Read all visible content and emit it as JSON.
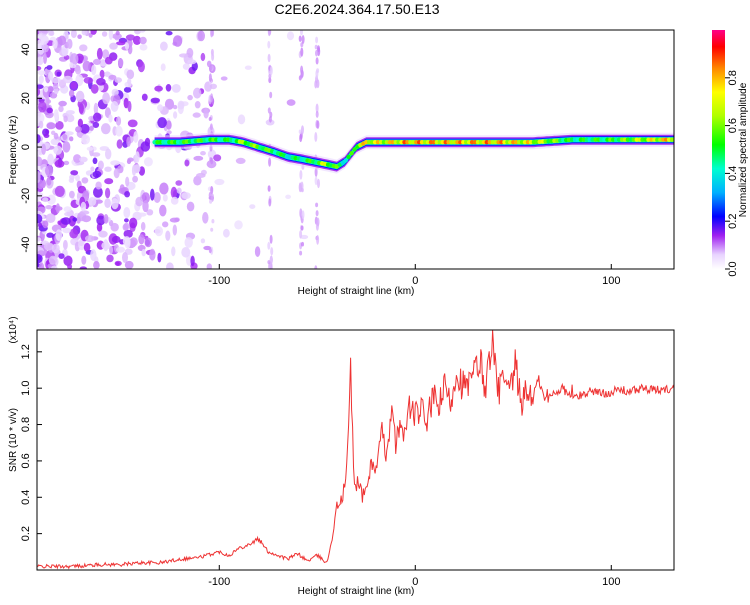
{
  "title": "C2E6.2024.364.17.50.E13",
  "chart_data": [
    {
      "type": "heatmap",
      "xlabel": "Height of straight line (km)",
      "ylabel": "Frequency (Hz)",
      "xlim": [
        -193,
        132
      ],
      "ylim": [
        -50,
        48
      ],
      "xticks": [
        -100,
        0,
        100
      ],
      "yticks": [
        -40,
        -20,
        0,
        20,
        40
      ],
      "colorbar": {
        "label": "Normalized spectral amplitude",
        "ticks": [
          "0.0",
          "0.2",
          "0.4",
          "0.6",
          "0.8"
        ],
        "range": [
          0,
          1
        ]
      },
      "ridge": {
        "x": [
          -133,
          -120,
          -105,
          -95,
          -88,
          -80,
          -72,
          -65,
          -58,
          -52,
          -46,
          -40,
          -36,
          -33,
          -30,
          -25,
          -18,
          -10,
          -5,
          0,
          20,
          40,
          60,
          80,
          100,
          132
        ],
        "frequency": [
          2,
          2,
          3,
          3,
          2,
          0,
          -2,
          -4,
          -5,
          -6,
          -7,
          -8,
          -6,
          -3,
          0,
          2,
          2,
          2,
          2,
          2,
          2,
          2,
          2,
          3,
          3,
          3
        ],
        "amplitude": [
          0.55,
          0.6,
          0.6,
          0.55,
          0.7,
          0.65,
          0.6,
          0.5,
          0.55,
          0.6,
          0.75,
          0.6,
          0.5,
          0.55,
          0.75,
          0.85,
          0.8,
          0.85,
          0.9,
          0.9,
          0.88,
          0.9,
          0.8,
          0.55,
          0.6,
          0.9
        ]
      }
    },
    {
      "type": "line",
      "xlabel": "Height of straight line (km)",
      "ylabel": "SNR (10 * v/v)",
      "scale_label": "(x10⁴)",
      "xlim": [
        -193,
        132
      ],
      "ylim": [
        0,
        1.32
      ],
      "xticks": [
        -100,
        0,
        100
      ],
      "yticks": [
        "0.2",
        "0.4",
        "0.6",
        "0.8",
        "1.0",
        "1.2"
      ],
      "color": "#ee3333",
      "series": [
        {
          "x": [
            -193,
            -175,
            -160,
            -150,
            -140,
            -130,
            -120,
            -110,
            -100,
            -95,
            -90,
            -85,
            -80,
            -75,
            -70,
            -65,
            -60,
            -55,
            -50,
            -45,
            -42,
            -40,
            -37,
            -35,
            -33,
            -31,
            -29,
            -27,
            -25,
            -22,
            -20,
            -17,
            -15,
            -12,
            -10,
            -7,
            -5,
            -3,
            0,
            3,
            6,
            9,
            12,
            15,
            18,
            21,
            24,
            27,
            30,
            33,
            36,
            39,
            42,
            45,
            48,
            51,
            54,
            57,
            60,
            63,
            66,
            70,
            75,
            80,
            85,
            90,
            95,
            100,
            105,
            110,
            115,
            120,
            125,
            132
          ],
          "values": [
            0.02,
            0.02,
            0.03,
            0.03,
            0.04,
            0.04,
            0.06,
            0.07,
            0.1,
            0.08,
            0.12,
            0.14,
            0.17,
            0.1,
            0.08,
            0.06,
            0.09,
            0.05,
            0.08,
            0.04,
            0.2,
            0.35,
            0.4,
            0.55,
            1.08,
            0.45,
            0.5,
            0.4,
            0.45,
            0.6,
            0.55,
            0.75,
            0.65,
            0.85,
            0.7,
            0.8,
            0.75,
            0.9,
            0.85,
            0.88,
            0.82,
            0.95,
            0.9,
            1.0,
            0.92,
            1.1,
            1.02,
            1.0,
            1.08,
            1.15,
            1.0,
            1.28,
            0.98,
            1.05,
            0.95,
            1.12,
            0.92,
            0.98,
            0.96,
            1.05,
            0.93,
            0.97,
            1.0,
            0.95,
            0.96,
            0.99,
            0.97,
            0.98,
            0.99,
            0.98,
            1.0,
            0.99,
            0.99,
            1.0
          ]
        }
      ]
    }
  ]
}
